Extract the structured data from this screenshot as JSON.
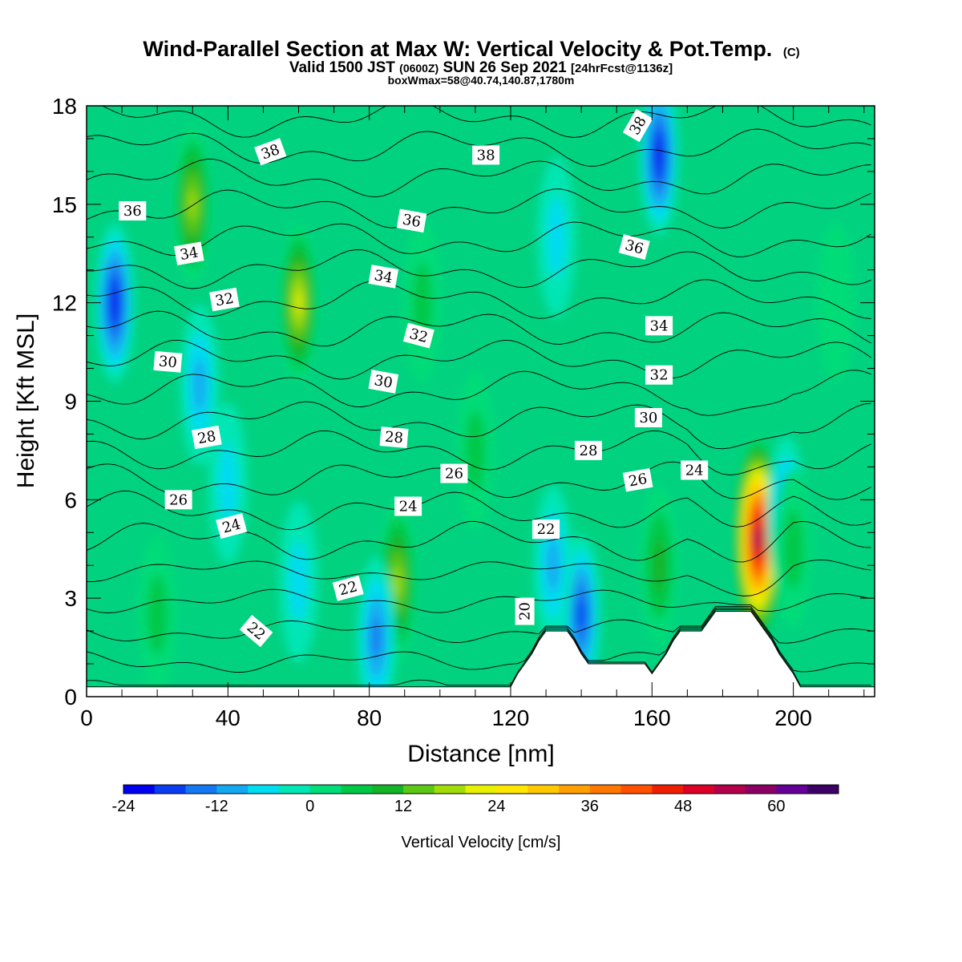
{
  "chart_data": {
    "type": "heatmap",
    "title": "Wind-Parallel Section at Max W: Vertical Velocity & Pot.Temp.",
    "title_mark": "(C)",
    "subtitle_parts": [
      "Valid 1500 JST",
      "(0600Z)",
      "SUN 26 Sep 2021",
      "[24hrFcst@1136z]"
    ],
    "subtitle2": "boxWmax=58@40.74,140.87,1780m",
    "xlabel": "Distance [nm]",
    "ylabel": "Height [Kft MSL]",
    "xlim": [
      0,
      223
    ],
    "ylim": [
      0,
      18
    ],
    "xticks": [
      0,
      40,
      80,
      120,
      160,
      200
    ],
    "yticks": [
      0,
      3,
      6,
      9,
      12,
      15,
      18
    ],
    "colorbar": {
      "label": "Vertical Velocity [cm/s]",
      "range": [
        -24,
        68
      ],
      "step": 4,
      "ticks": [
        -24,
        -12,
        0,
        12,
        24,
        36,
        48,
        60
      ],
      "colors": [
        "#0000ee",
        "#0a3cf0",
        "#1478f0",
        "#14a8f0",
        "#00dcf0",
        "#00e6b4",
        "#00dc78",
        "#00c846",
        "#14b428",
        "#5ac814",
        "#a0dc0a",
        "#e6f000",
        "#ffe600",
        "#ffc800",
        "#ffa000",
        "#ff7800",
        "#ff5000",
        "#f01e00",
        "#dc0028",
        "#b4004b",
        "#8c0064",
        "#640096",
        "#3c0064"
      ]
    },
    "w_cells": [
      {
        "x": 8,
        "z": 12,
        "w": -22
      },
      {
        "x": 30,
        "z": 15,
        "w": 20
      },
      {
        "x": 60,
        "z": 12,
        "w": 24
      },
      {
        "x": 32,
        "z": 9.5,
        "w": -12
      },
      {
        "x": 40,
        "z": 6.5,
        "w": -6
      },
      {
        "x": 88,
        "z": 3.5,
        "w": 18
      },
      {
        "x": 82,
        "z": 1.8,
        "w": -14
      },
      {
        "x": 140,
        "z": 2.5,
        "w": -20
      },
      {
        "x": 132,
        "z": 4,
        "w": -10
      },
      {
        "x": 162,
        "z": 16.5,
        "w": -24
      },
      {
        "x": 190,
        "z": 4.8,
        "w": 58
      },
      {
        "x": 198,
        "z": 5.5,
        "w": -16
      },
      {
        "x": 162,
        "z": 4,
        "w": 12
      },
      {
        "x": 133,
        "z": 14,
        "w": -6
      },
      {
        "x": 200,
        "z": 4.5,
        "w": 6
      },
      {
        "x": 95,
        "z": 12,
        "w": 6
      },
      {
        "x": 110,
        "z": 7.5,
        "w": 8
      },
      {
        "x": 60,
        "z": 3.5,
        "w": -6
      },
      {
        "x": 212,
        "z": 12,
        "w": 4
      },
      {
        "x": 20,
        "z": 2.5,
        "w": 6
      }
    ],
    "terrain": [
      [
        0,
        0.3
      ],
      [
        120,
        0.3
      ],
      [
        122,
        0.7
      ],
      [
        124,
        1.0
      ],
      [
        126,
        1.3
      ],
      [
        128,
        1.7
      ],
      [
        130,
        2.0
      ],
      [
        136,
        2.0
      ],
      [
        138,
        1.7
      ],
      [
        140,
        1.3
      ],
      [
        142,
        1.0
      ],
      [
        146,
        1.0
      ],
      [
        158,
        1.0
      ],
      [
        160,
        0.7
      ],
      [
        162,
        1.0
      ],
      [
        164,
        1.3
      ],
      [
        166,
        1.7
      ],
      [
        168,
        2.0
      ],
      [
        174,
        2.0
      ],
      [
        176,
        2.3
      ],
      [
        178,
        2.6
      ],
      [
        188,
        2.6
      ],
      [
        190,
        2.3
      ],
      [
        192,
        2.0
      ],
      [
        194,
        1.7
      ],
      [
        196,
        1.3
      ],
      [
        198,
        1.0
      ],
      [
        200,
        0.7
      ],
      [
        202,
        0.3
      ],
      [
        223,
        0.3
      ]
    ],
    "isentropes": [
      20,
      21,
      22,
      23,
      24,
      25,
      26,
      27,
      28,
      29,
      30,
      31,
      32,
      33,
      34,
      35,
      36,
      37,
      38,
      39
    ],
    "contour_labels": [
      {
        "text": "38",
        "x": 52,
        "z": 16.6,
        "rot": -20
      },
      {
        "text": "38",
        "x": 113,
        "z": 16.5,
        "rot": 0
      },
      {
        "text": "38",
        "x": 156,
        "z": 17.4,
        "rot": -60
      },
      {
        "text": "36",
        "x": 13,
        "z": 14.8,
        "rot": 0
      },
      {
        "text": "36",
        "x": 92,
        "z": 14.5,
        "rot": 10
      },
      {
        "text": "36",
        "x": 155,
        "z": 13.7,
        "rot": 15
      },
      {
        "text": "34",
        "x": 29,
        "z": 13.5,
        "rot": -10
      },
      {
        "text": "34",
        "x": 84,
        "z": 12.8,
        "rot": 10
      },
      {
        "text": "34",
        "x": 162,
        "z": 11.3,
        "rot": 0
      },
      {
        "text": "32",
        "x": 39,
        "z": 12.1,
        "rot": -10
      },
      {
        "text": "32",
        "x": 94,
        "z": 11.0,
        "rot": 15
      },
      {
        "text": "32",
        "x": 162,
        "z": 9.8,
        "rot": 0
      },
      {
        "text": "30",
        "x": 23,
        "z": 10.2,
        "rot": 5
      },
      {
        "text": "30",
        "x": 84,
        "z": 9.6,
        "rot": 10
      },
      {
        "text": "30",
        "x": 159,
        "z": 8.5,
        "rot": 0
      },
      {
        "text": "28",
        "x": 34,
        "z": 7.9,
        "rot": -10
      },
      {
        "text": "28",
        "x": 87,
        "z": 7.9,
        "rot": 5
      },
      {
        "text": "28",
        "x": 142,
        "z": 7.5,
        "rot": 0
      },
      {
        "text": "26",
        "x": 26,
        "z": 6.0,
        "rot": 0
      },
      {
        "text": "26",
        "x": 104,
        "z": 6.8,
        "rot": 0
      },
      {
        "text": "26",
        "x": 156,
        "z": 6.6,
        "rot": -10
      },
      {
        "text": "24",
        "x": 41,
        "z": 5.2,
        "rot": -15
      },
      {
        "text": "24",
        "x": 91,
        "z": 5.8,
        "rot": 0
      },
      {
        "text": "24",
        "x": 172,
        "z": 6.9,
        "rot": 0
      },
      {
        "text": "22",
        "x": 74,
        "z": 3.3,
        "rot": -15
      },
      {
        "text": "22",
        "x": 48,
        "z": 2.0,
        "rot": 40
      },
      {
        "text": "22",
        "x": 130,
        "z": 5.1,
        "rot": 0
      },
      {
        "text": "20",
        "x": 124,
        "z": 2.6,
        "rot": -90
      }
    ]
  }
}
